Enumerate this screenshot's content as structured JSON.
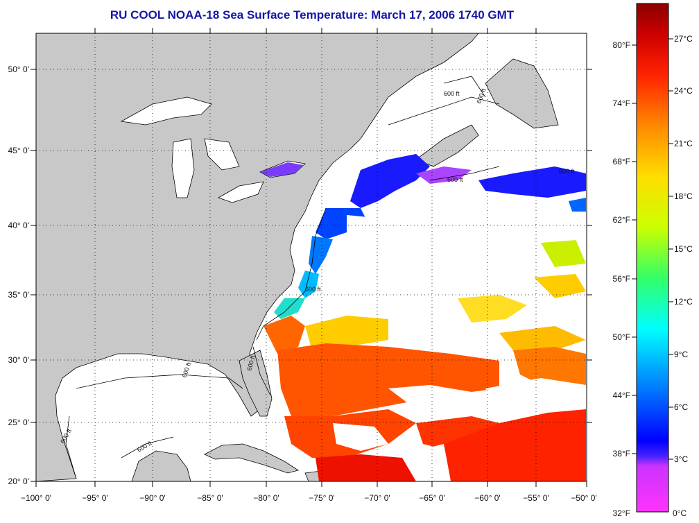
{
  "title": "RU COOL  NOAA-18  Sea Surface Temperature:  March 17, 2006 1740 GMT",
  "map": {
    "lon_labels": [
      "−100° 0'",
      "−95° 0'",
      "−90° 0'",
      "−85° 0'",
      "−80° 0'",
      "−75° 0'",
      "−70° 0'",
      "−65° 0'",
      "−60° 0'",
      "−55° 0'",
      "−50° 0'"
    ],
    "lat_labels": [
      "50° 0'",
      "45° 0'",
      "40° 0'",
      "35° 0'",
      "30° 0'",
      "25° 0'",
      "20° 0'"
    ],
    "contour_label": "600 ft",
    "grid": "dotted",
    "land_color": "#c8c8c8",
    "cloud_color": "#ffffff"
  },
  "colorbar": {
    "fahrenheit": [
      "80°F",
      "74°F",
      "68°F",
      "62°F",
      "56°F",
      "50°F",
      "44°F",
      "38°F",
      "32°F"
    ],
    "celsius": [
      "27°C",
      "24°C",
      "21°C",
      "18°C",
      "15°C",
      "12°C",
      "9°C",
      "6°C",
      "3°C",
      "0°C"
    ],
    "colors": [
      "#ff33ff",
      "#9933ff",
      "#0000ff",
      "#0088ff",
      "#00ffff",
      "#33ff66",
      "#ccff00",
      "#ffdd00",
      "#ff8800",
      "#ff2200",
      "#cc0000",
      "#8b0000"
    ]
  }
}
